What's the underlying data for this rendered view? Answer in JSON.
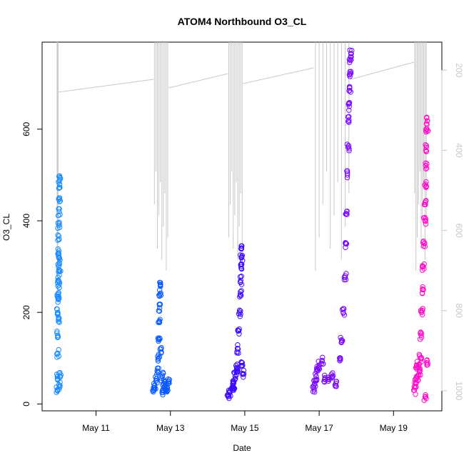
{
  "chart_data": {
    "type": "scatter",
    "title": "ATOM4 Northbound O3_CL",
    "xlabel": "Date",
    "ylabel": "O3_CL",
    "x_ticks": [
      "May 11",
      "May 13",
      "May 15",
      "May 17",
      "May 19"
    ],
    "x_tick_values": [
      11,
      13,
      15,
      17,
      19
    ],
    "xlim": [
      9.55,
      20.3
    ],
    "ylim": [
      -15,
      790
    ],
    "y_ticks": [
      0,
      200,
      400,
      600
    ],
    "y2_label": "",
    "y2_ticks": [
      200,
      400,
      600,
      800,
      1000
    ],
    "y2_lim": [
      130,
      1050
    ],
    "y2_reversed": true,
    "grid": false,
    "legend": "none",
    "secondary_line_color": "#c8c8c8",
    "segments": [
      {
        "start": 9.95,
        "end": 9.98,
        "color": "#1a8cff",
        "points": [
          [
            9.96,
            30
          ],
          [
            9.96,
            60
          ],
          [
            9.97,
            110
          ],
          [
            9.97,
            150
          ],
          [
            9.97,
            200
          ],
          [
            9.98,
            240
          ],
          [
            9.98,
            270
          ],
          [
            9.99,
            300
          ],
          [
            9.99,
            330
          ],
          [
            10.0,
            360
          ],
          [
            10.0,
            390
          ],
          [
            10.01,
            420
          ],
          [
            10.02,
            450
          ],
          [
            10.02,
            480
          ],
          [
            10.03,
            490
          ],
          [
            10.03,
            40
          ],
          [
            10.03,
            60
          ],
          [
            9.99,
            180
          ],
          [
            9.98,
            230
          ],
          [
            10.0,
            260
          ],
          [
            10.02,
            290
          ],
          [
            10.01,
            320
          ]
        ]
      },
      {
        "start": 12.55,
        "end": 12.95,
        "color": "#0a5aff",
        "points": [
          [
            12.55,
            35
          ],
          [
            12.58,
            40
          ],
          [
            12.62,
            55
          ],
          [
            12.66,
            70
          ],
          [
            12.68,
            100
          ],
          [
            12.69,
            140
          ],
          [
            12.7,
            180
          ],
          [
            12.71,
            210
          ],
          [
            12.72,
            240
          ],
          [
            12.73,
            265
          ],
          [
            12.75,
            120
          ],
          [
            12.78,
            60
          ],
          [
            12.82,
            45
          ],
          [
            12.86,
            40
          ],
          [
            12.9,
            35
          ],
          [
            12.93,
            30
          ],
          [
            12.95,
            50
          ],
          [
            12.8,
            25
          ]
        ]
      },
      {
        "start": 14.55,
        "end": 14.95,
        "color": "#3d0aff",
        "points": [
          [
            14.56,
            20
          ],
          [
            14.6,
            25
          ],
          [
            14.65,
            35
          ],
          [
            14.7,
            45
          ],
          [
            14.74,
            60
          ],
          [
            14.78,
            80
          ],
          [
            14.82,
            120
          ],
          [
            14.84,
            160
          ],
          [
            14.86,
            200
          ],
          [
            14.88,
            240
          ],
          [
            14.89,
            270
          ],
          [
            14.9,
            300
          ],
          [
            14.91,
            320
          ],
          [
            14.92,
            345
          ],
          [
            14.93,
            90
          ],
          [
            14.95,
            65
          ],
          [
            14.8,
            70
          ],
          [
            14.7,
            30
          ]
        ]
      },
      {
        "start": 16.85,
        "end": 17.85,
        "color": "#7a0aff",
        "points": [
          [
            16.85,
            35
          ],
          [
            16.88,
            45
          ],
          [
            16.92,
            60
          ],
          [
            16.95,
            75
          ],
          [
            17.0,
            85
          ],
          [
            17.08,
            95
          ],
          [
            17.15,
            55
          ],
          [
            17.25,
            50
          ],
          [
            17.35,
            60
          ],
          [
            17.45,
            45
          ],
          [
            17.55,
            100
          ],
          [
            17.6,
            140
          ],
          [
            17.65,
            200
          ],
          [
            17.7,
            280
          ],
          [
            17.72,
            350
          ],
          [
            17.74,
            420
          ],
          [
            17.76,
            500
          ],
          [
            17.78,
            560
          ],
          [
            17.8,
            620
          ],
          [
            17.82,
            690
          ],
          [
            17.84,
            750
          ],
          [
            17.85,
            765
          ],
          [
            17.83,
            720
          ],
          [
            17.81,
            650
          ]
        ]
      },
      {
        "start": 19.55,
        "end": 19.9,
        "color": "#ff0ac8",
        "points": [
          [
            19.56,
            30
          ],
          [
            19.6,
            45
          ],
          [
            19.64,
            60
          ],
          [
            19.68,
            80
          ],
          [
            19.72,
            100
          ],
          [
            19.74,
            150
          ],
          [
            19.76,
            200
          ],
          [
            19.78,
            250
          ],
          [
            19.8,
            300
          ],
          [
            19.82,
            350
          ],
          [
            19.84,
            400
          ],
          [
            19.85,
            440
          ],
          [
            19.86,
            480
          ],
          [
            19.87,
            520
          ],
          [
            19.88,
            560
          ],
          [
            19.9,
            600
          ],
          [
            19.91,
            618
          ],
          [
            19.89,
            90
          ],
          [
            19.85,
            15
          ],
          [
            19.7,
            70
          ],
          [
            19.62,
            85
          ]
        ]
      }
    ]
  }
}
